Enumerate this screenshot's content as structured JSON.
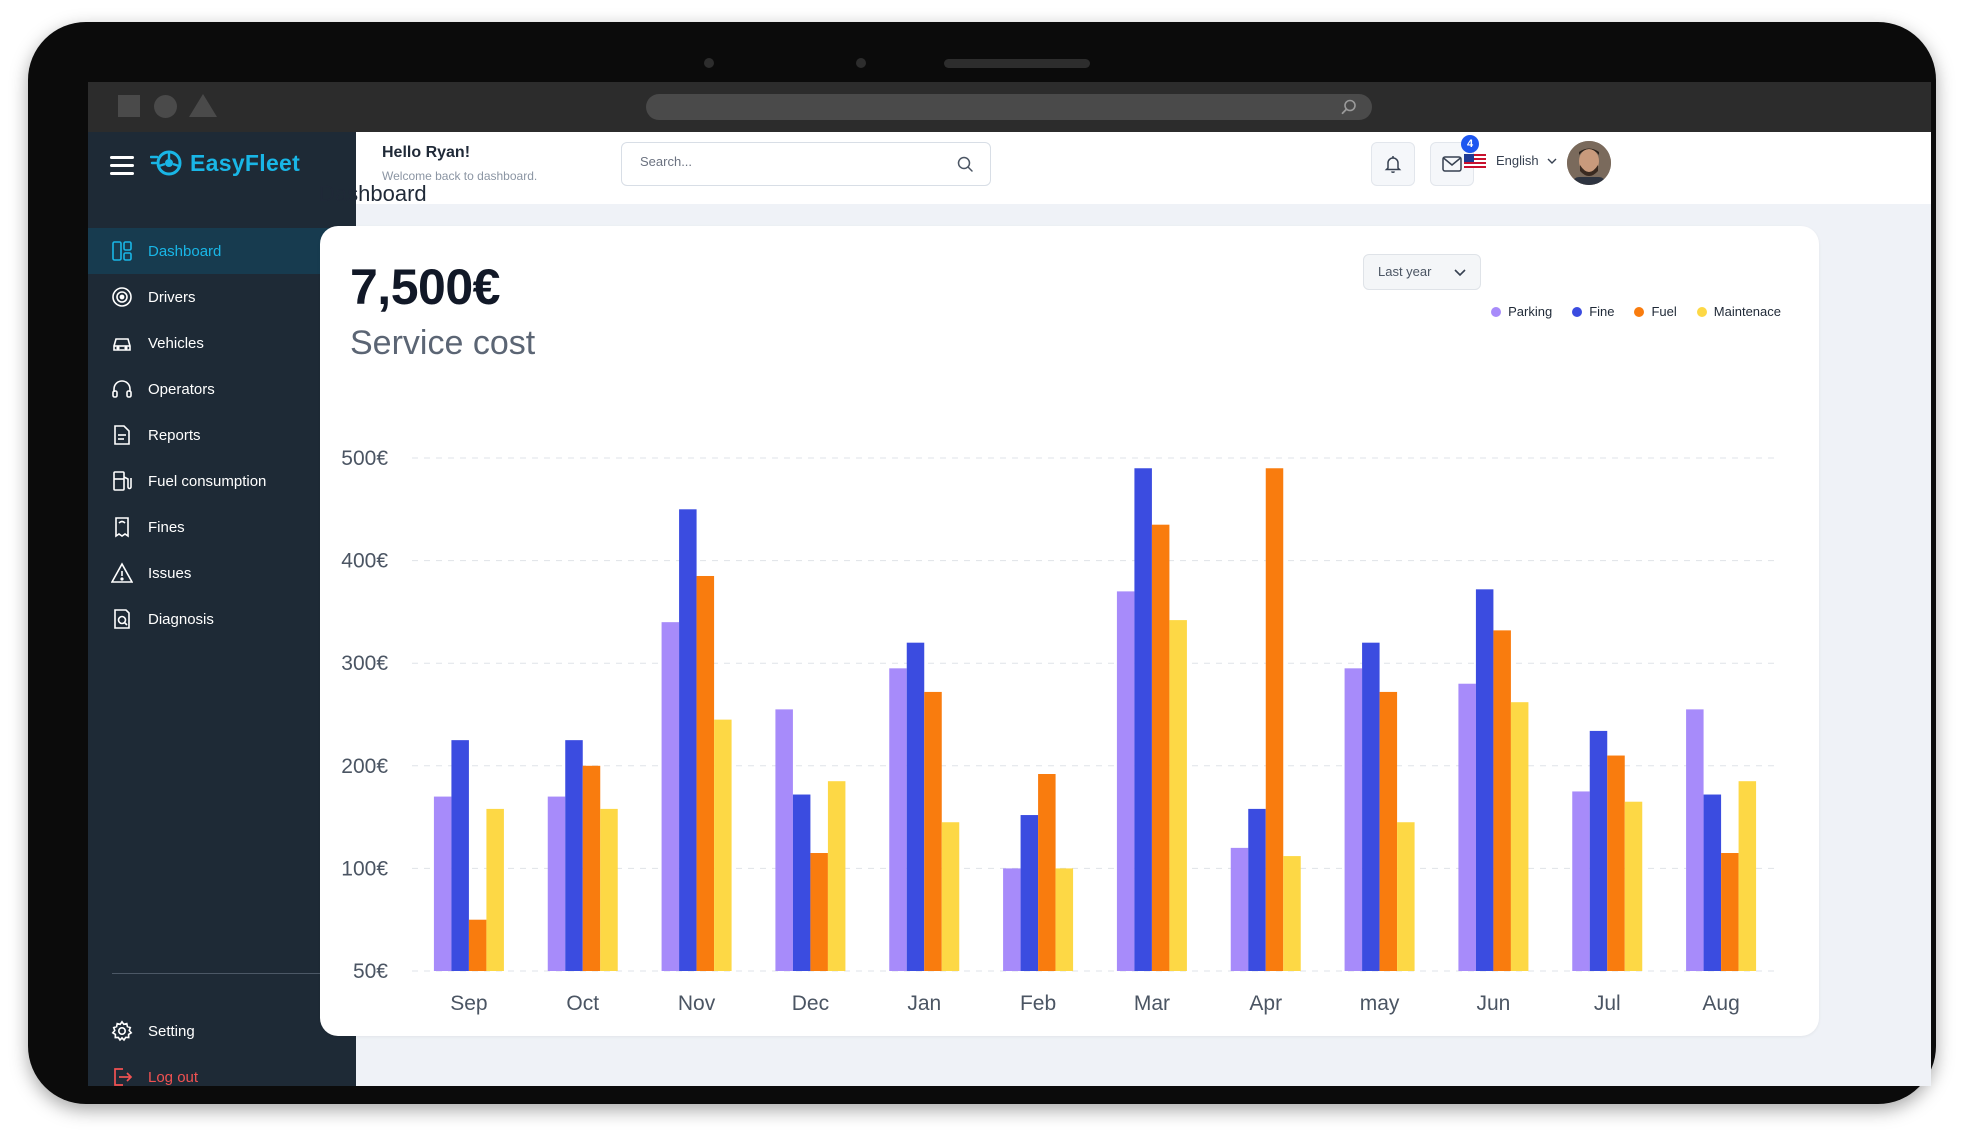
{
  "app": {
    "name": "EasyFleet"
  },
  "sidebar": {
    "items": [
      {
        "label": "Dashboard",
        "icon": "dashboard-icon",
        "active": true
      },
      {
        "label": "Drivers",
        "icon": "steering-wheel-icon"
      },
      {
        "label": "Vehicles",
        "icon": "car-icon"
      },
      {
        "label": "Operators",
        "icon": "headset-icon"
      },
      {
        "label": "Reports",
        "icon": "report-icon"
      },
      {
        "label": "Fuel consumption",
        "icon": "fuel-pump-icon"
      },
      {
        "label": "Fines",
        "icon": "ticket-icon"
      },
      {
        "label": "Issues",
        "icon": "warning-icon"
      },
      {
        "label": "Diagnosis",
        "icon": "diagnosis-icon"
      }
    ],
    "bottom": [
      {
        "label": "Setting",
        "icon": "gear-icon"
      },
      {
        "label": "Log out",
        "icon": "logout-icon"
      }
    ]
  },
  "header": {
    "greeting": "Hello Ryan!",
    "subtitle": "Welcome back to dashboard.",
    "search_placeholder": "Search...",
    "mail_badge": "4",
    "language": "English"
  },
  "page": {
    "title": "Dashboard"
  },
  "summary": {
    "amount": "7,500€",
    "label": "Service cost",
    "period": "Last year"
  },
  "colors": {
    "accent": "#19b6e6",
    "sidebar": "#1e2a36",
    "parking": "#a78bfa",
    "fine": "#3b4ce0",
    "fuel": "#f97c0e",
    "maintenance": "#fdd845"
  },
  "chart_data": {
    "type": "bar",
    "categories": [
      "Sep",
      "Oct",
      "Nov",
      "Dec",
      "Jan",
      "Feb",
      "Mar",
      "Apr",
      "may",
      "Jun",
      "Jul",
      "Aug"
    ],
    "series": [
      {
        "name": "Parking",
        "color": "#a78bfa",
        "values": [
          170,
          170,
          340,
          255,
          295,
          100,
          370,
          120,
          295,
          280,
          175,
          255
        ]
      },
      {
        "name": "Fine",
        "color": "#3b4ce0",
        "values": [
          225,
          225,
          450,
          172,
          320,
          152,
          490,
          158,
          320,
          372,
          234,
          172
        ]
      },
      {
        "name": "Fuel",
        "color": "#f97c0e",
        "values": [
          75,
          200,
          385,
          115,
          272,
          192,
          435,
          490,
          272,
          332,
          210,
          115
        ]
      },
      {
        "name": "Maintenace",
        "color": "#fdd845",
        "values": [
          158,
          158,
          245,
          185,
          145,
          100,
          342,
          112,
          145,
          262,
          165,
          185
        ]
      }
    ],
    "yticks": [
      50,
      100,
      200,
      300,
      400,
      500
    ],
    "ytick_labels": [
      "50€",
      "100€",
      "200€",
      "300€",
      "400€",
      "500€"
    ],
    "legend": "top-right",
    "grid": "dashed-horizontal"
  }
}
